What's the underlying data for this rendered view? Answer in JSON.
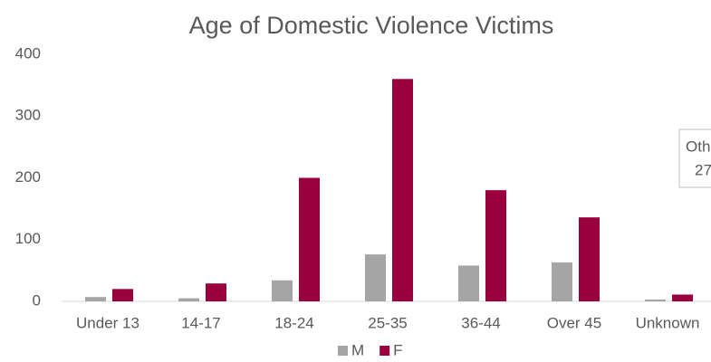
{
  "chart_data": {
    "type": "bar",
    "title": "Age of Domestic Violence Victims",
    "categories": [
      "Under 13",
      "14-17",
      "18-24",
      "25-35",
      "36-44",
      "Over 45",
      "Unknown"
    ],
    "series": [
      {
        "name": "M",
        "color": "#a5a5a5",
        "values": [
          7,
          5,
          34,
          76,
          58,
          63,
          3
        ]
      },
      {
        "name": "F",
        "color": "#99003d",
        "values": [
          20,
          29,
          200,
          360,
          180,
          136,
          11
        ]
      }
    ],
    "ylim": [
      0,
      400
    ],
    "yticks": [
      0,
      100,
      200,
      300,
      400
    ],
    "grid": false,
    "legend": "bottom",
    "annotations": [
      "Oth",
      "27"
    ]
  }
}
